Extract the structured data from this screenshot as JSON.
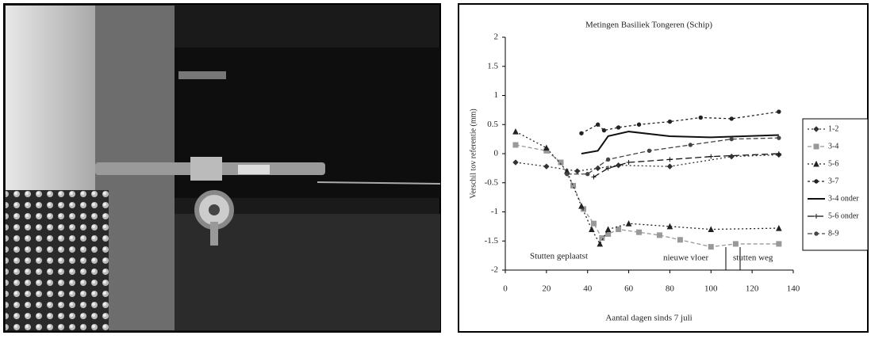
{
  "chart_data": {
    "type": "line",
    "title": "Metingen Basiliek Tongeren (Schip)",
    "x_label": "Aantal dagen sinds 7 juli",
    "y_label": "Verschil tov referentie (mm)",
    "xlim": [
      0,
      140
    ],
    "xticks": [
      0,
      20,
      40,
      60,
      80,
      100,
      120,
      140
    ],
    "ylim": [
      -2,
      2
    ],
    "yticks": [
      -2,
      -1.5,
      -1,
      -0.5,
      0,
      0.5,
      1,
      1.5,
      2
    ],
    "annotations": [
      "Stutten geplaatst",
      "nieuwe vloer",
      "stutten weg"
    ],
    "series": [
      {
        "name": "1-2",
        "color": "#333333",
        "marker": "diamond",
        "dash": "2 3",
        "x": [
          5,
          20,
          35,
          45,
          55,
          80,
          110,
          133
        ],
        "values": [
          -0.15,
          -0.22,
          -0.3,
          -0.25,
          -0.2,
          -0.22,
          -0.05,
          -0.02
        ]
      },
      {
        "name": "3-4",
        "color": "#999999",
        "marker": "square",
        "dash": "5 3",
        "x": [
          5,
          20,
          27,
          33,
          38,
          43,
          47,
          50,
          55,
          65,
          75,
          85,
          100,
          112,
          133
        ],
        "values": [
          0.15,
          0.05,
          -0.15,
          -0.55,
          -0.95,
          -1.2,
          -1.45,
          -1.38,
          -1.3,
          -1.35,
          -1.4,
          -1.48,
          -1.6,
          -1.55,
          -1.55
        ]
      },
      {
        "name": "5-6",
        "color": "#222222",
        "marker": "triangle",
        "dash": "2 3",
        "x": [
          5,
          20,
          30,
          37,
          42,
          46,
          50,
          60,
          80,
          100,
          133
        ],
        "values": [
          0.38,
          0.1,
          -0.3,
          -0.9,
          -1.3,
          -1.55,
          -1.3,
          -1.2,
          -1.25,
          -1.3,
          -1.28
        ]
      },
      {
        "name": "3-7",
        "color": "#222222",
        "marker": "circle",
        "dash": "3 3",
        "x": [
          37,
          45,
          48,
          55,
          65,
          80,
          95,
          110,
          133
        ],
        "values": [
          0.35,
          0.5,
          0.4,
          0.45,
          0.5,
          0.55,
          0.62,
          0.6,
          0.72
        ]
      },
      {
        "name": "3-4 onder",
        "color": "#111111",
        "marker": "none",
        "dash": "",
        "x": [
          37,
          45,
          50,
          60,
          80,
          100,
          133
        ],
        "values": [
          0,
          0.05,
          0.3,
          0.38,
          0.3,
          0.28,
          0.32
        ]
      },
      {
        "name": "5-6 onder",
        "color": "#111111",
        "marker": "plus",
        "dash": "8 4",
        "x": [
          43,
          50,
          60,
          80,
          100,
          133
        ],
        "values": [
          -0.4,
          -0.25,
          -0.15,
          -0.1,
          -0.05,
          0
        ]
      },
      {
        "name": "8-9",
        "color": "#444444",
        "marker": "circle",
        "dash": "6 3",
        "x": [
          30,
          40,
          50,
          70,
          90,
          110,
          133
        ],
        "values": [
          -0.35,
          -0.35,
          -0.1,
          0.05,
          0.15,
          0.25,
          0.27
        ]
      }
    ]
  }
}
